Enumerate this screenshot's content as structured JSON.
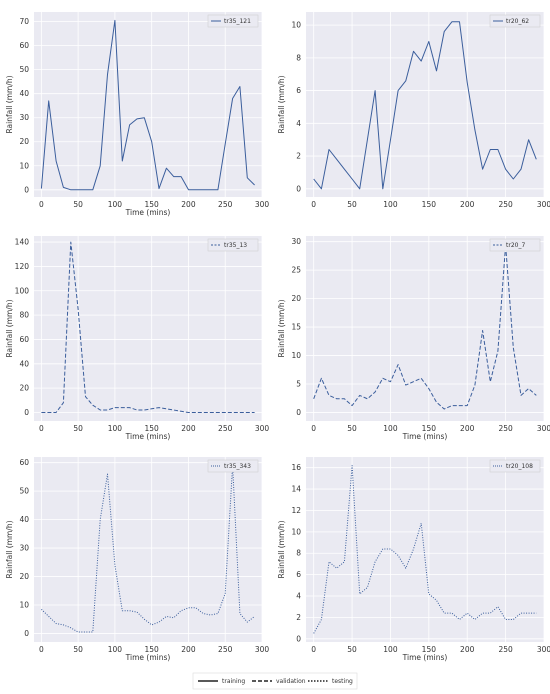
{
  "figure_legend": {
    "entries": [
      {
        "label": "training",
        "style": "solid"
      },
      {
        "label": "validation",
        "style": "dashed"
      },
      {
        "label": "testing",
        "style": "dotted"
      }
    ]
  },
  "colors": {
    "line": "#3b5e9c",
    "panel_bg": "#eaeaf2",
    "grid": "#ffffff"
  },
  "chart_data": [
    {
      "type": "line",
      "legend": "tr35_121",
      "style": "solid",
      "xlabel": "Time (mins)",
      "ylabel": "Rainfall (mm/h)",
      "xlim": [
        -10,
        300
      ],
      "ylim": [
        -3,
        74
      ],
      "xticks": [
        0,
        50,
        100,
        150,
        200,
        250,
        300
      ],
      "yticks": [
        0,
        10,
        20,
        30,
        40,
        50,
        60,
        70
      ],
      "ytick_labels": [
        "0",
        "10",
        "20",
        "30",
        "40",
        "50",
        "60",
        "70"
      ],
      "x": [
        0,
        10,
        20,
        30,
        40,
        50,
        60,
        70,
        80,
        90,
        100,
        110,
        120,
        130,
        140,
        150,
        160,
        170,
        180,
        190,
        200,
        210,
        220,
        230,
        240,
        250,
        260,
        270,
        280,
        290
      ],
      "y": [
        0.5,
        37,
        12,
        1,
        0,
        0,
        0,
        0,
        10,
        48,
        70.5,
        12,
        27,
        29.5,
        30,
        20,
        0.5,
        9,
        5.5,
        5.5,
        0,
        0,
        0,
        0,
        0,
        19,
        38,
        43,
        5,
        2
      ]
    },
    {
      "type": "line",
      "legend": "tr20_62",
      "style": "solid",
      "xlabel": "",
      "ylabel": "Rainfall (mm/h)",
      "xlim": [
        -10,
        300
      ],
      "ylim": [
        -0.5,
        10.8
      ],
      "xticks": [
        0,
        50,
        100,
        150,
        200,
        250,
        300
      ],
      "yticks": [
        0,
        2,
        4,
        6,
        8,
        10
      ],
      "ytick_labels": [
        "0",
        "2",
        "4",
        "6",
        "8",
        "10"
      ],
      "x": [
        0,
        10,
        20,
        30,
        40,
        50,
        60,
        70,
        80,
        90,
        100,
        110,
        120,
        130,
        140,
        150,
        160,
        170,
        180,
        190,
        200,
        210,
        220,
        230,
        240,
        250,
        260,
        270,
        280,
        290
      ],
      "y": [
        0.6,
        0,
        2.4,
        1.8,
        1.2,
        0.6,
        0,
        3,
        6,
        0,
        3,
        6,
        6.6,
        8.4,
        7.8,
        9,
        7.2,
        9.6,
        10.2,
        10.2,
        6.5,
        3.6,
        1.2,
        2.4,
        2.4,
        1.2,
        0.6,
        1.2,
        3,
        1.8
      ]
    },
    {
      "type": "line",
      "legend": "tr35_13",
      "style": "dashed",
      "xlabel": "Time (mins)",
      "ylabel": "Rainfall (mm/h)",
      "xlim": [
        -10,
        300
      ],
      "ylim": [
        -7,
        145
      ],
      "xticks": [
        0,
        50,
        100,
        150,
        200,
        250,
        300
      ],
      "yticks": [
        0,
        20,
        40,
        60,
        80,
        100,
        120,
        140
      ],
      "ytick_labels": [
        "0",
        "20",
        "40",
        "60",
        "80",
        "100",
        "120",
        "140"
      ],
      "x": [
        0,
        10,
        20,
        30,
        40,
        50,
        60,
        70,
        80,
        90,
        100,
        110,
        120,
        130,
        140,
        150,
        160,
        170,
        180,
        190,
        200,
        210,
        220,
        230,
        240,
        250,
        260,
        270,
        280,
        290
      ],
      "y": [
        0,
        0,
        0,
        8,
        140,
        85,
        13,
        6,
        2,
        2,
        4,
        4,
        4,
        2,
        2,
        3,
        4,
        3,
        2,
        1,
        0,
        0,
        0,
        0,
        0,
        0,
        0,
        0,
        0,
        0
      ]
    },
    {
      "type": "line",
      "legend": "tr20_7",
      "style": "dashed",
      "xlabel": "Time (mins)",
      "ylabel": "Rainfall (mm/h)",
      "xlim": [
        -10,
        300
      ],
      "ylim": [
        -1.5,
        31
      ],
      "xticks": [
        0,
        50,
        100,
        150,
        200,
        250,
        300
      ],
      "yticks": [
        0,
        5,
        10,
        15,
        20,
        25,
        30
      ],
      "ytick_labels": [
        "0",
        "5",
        "10",
        "15",
        "20",
        "25",
        "30"
      ],
      "x": [
        0,
        10,
        20,
        30,
        40,
        50,
        60,
        70,
        80,
        90,
        100,
        110,
        120,
        130,
        140,
        150,
        160,
        170,
        180,
        190,
        200,
        210,
        220,
        230,
        240,
        250,
        260,
        270,
        280,
        290
      ],
      "y": [
        2.4,
        6,
        3,
        2.4,
        2.4,
        1.2,
        3,
        2.4,
        3.6,
        6,
        5.4,
        8.4,
        4.8,
        5.4,
        6,
        4.2,
        1.8,
        0.6,
        1.2,
        1.2,
        1.2,
        4.8,
        14.4,
        5.4,
        10.8,
        29.4,
        11.4,
        3,
        4.2,
        3
      ]
    },
    {
      "type": "line",
      "legend": "tr35_343",
      "style": "dotted",
      "xlabel": "Time (mins)",
      "ylabel": "Rainfall (mm/h)",
      "xlim": [
        -10,
        300
      ],
      "ylim": [
        -3,
        62
      ],
      "xticks": [
        0,
        50,
        100,
        150,
        200,
        250,
        300
      ],
      "yticks": [
        0,
        10,
        20,
        30,
        40,
        50,
        60
      ],
      "ytick_labels": [
        "0",
        "10",
        "20",
        "30",
        "40",
        "50",
        "60"
      ],
      "x": [
        0,
        10,
        20,
        30,
        40,
        50,
        60,
        70,
        80,
        90,
        100,
        110,
        120,
        130,
        140,
        150,
        160,
        170,
        180,
        190,
        200,
        210,
        220,
        230,
        240,
        250,
        260,
        270,
        280,
        290
      ],
      "y": [
        8.5,
        6,
        3.5,
        3,
        2,
        0.5,
        0.5,
        0.5,
        40,
        56,
        24,
        8,
        8,
        7.5,
        5,
        3,
        4,
        6,
        5.5,
        8,
        9,
        9,
        7,
        6.5,
        7,
        14,
        59,
        7,
        4,
        6
      ]
    },
    {
      "type": "line",
      "legend": "tr20_108",
      "style": "dotted",
      "xlabel": "Time (mins)",
      "ylabel": "Rainfall (mm/h)",
      "xlim": [
        -10,
        300
      ],
      "ylim": [
        -0.3,
        17
      ],
      "xticks": [
        0,
        50,
        100,
        150,
        200,
        250,
        300
      ],
      "yticks": [
        0,
        2,
        4,
        6,
        8,
        10,
        12,
        14,
        16
      ],
      "ytick_labels": [
        "0",
        "2",
        "4",
        "6",
        "8",
        "10",
        "12",
        "14",
        "16"
      ],
      "x": [
        0,
        10,
        20,
        30,
        40,
        50,
        60,
        70,
        80,
        90,
        100,
        110,
        120,
        130,
        140,
        150,
        160,
        170,
        180,
        190,
        200,
        210,
        220,
        230,
        240,
        250,
        260,
        270,
        280,
        290
      ],
      "y": [
        0.5,
        1.8,
        7.2,
        6.6,
        7.2,
        16.2,
        4.2,
        4.8,
        7.2,
        8.4,
        8.4,
        7.8,
        6.6,
        8.4,
        10.8,
        4.2,
        3.6,
        2.4,
        2.4,
        1.8,
        2.4,
        1.8,
        2.4,
        2.4,
        3,
        1.8,
        1.8,
        2.4,
        2.4,
        2.4
      ]
    }
  ]
}
